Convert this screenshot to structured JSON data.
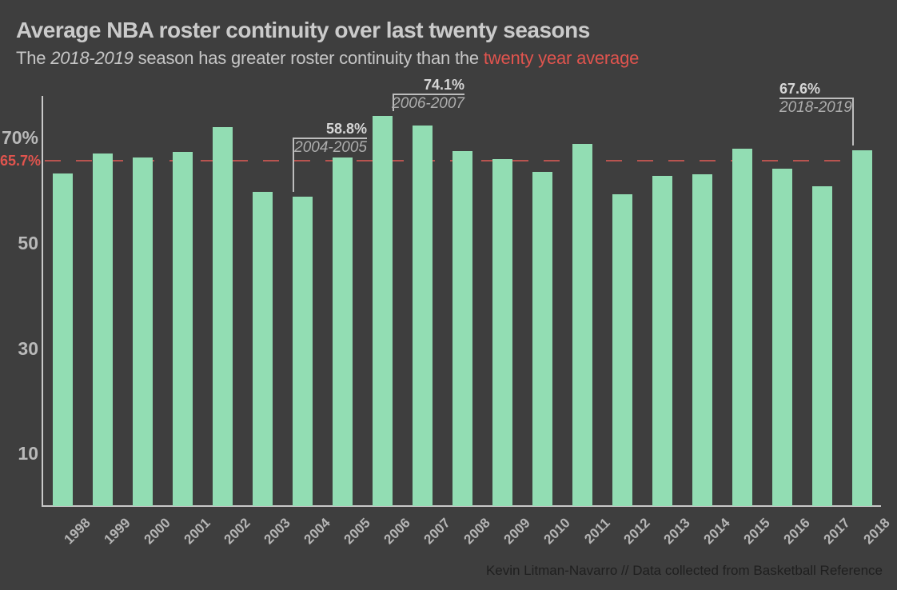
{
  "header": {
    "title": "Average NBA roster continuity over last twenty seasons",
    "subtitle": {
      "prefix": "The ",
      "season": "2018-2019",
      "middle": " season has greater roster continuity than the ",
      "highlight": "twenty year average"
    }
  },
  "chart_data": {
    "type": "bar",
    "title": "Average NBA roster continuity over last twenty seasons",
    "xlabel": "",
    "ylabel": "",
    "unit": "%",
    "categories": [
      "1998",
      "1999",
      "2000",
      "2001",
      "2002",
      "2003",
      "2004",
      "2005",
      "2006",
      "2007",
      "2008",
      "2009",
      "2010",
      "2011",
      "2012",
      "2013",
      "2014",
      "2015",
      "2016",
      "2017",
      "2018"
    ],
    "values": [
      63.2,
      67.0,
      66.2,
      67.4,
      72.0,
      59.7,
      58.8,
      66.2,
      74.1,
      72.4,
      67.5,
      66.0,
      63.5,
      68.9,
      59.2,
      62.8,
      63.0,
      67.9,
      64.1,
      60.8,
      67.6
    ],
    "ylim": [
      0,
      78
    ],
    "grid": false,
    "legend": "none",
    "yticks": [
      {
        "value": 70,
        "label": "70%"
      },
      {
        "value": 50,
        "label": "50"
      },
      {
        "value": 30,
        "label": "30"
      },
      {
        "value": 10,
        "label": "10"
      }
    ],
    "average_line": {
      "value": 65.7,
      "label": "65.7%",
      "style": "dashed"
    },
    "annotations": [
      {
        "category": "2004",
        "value_label": "58.8%",
        "season_label": "2004-2005"
      },
      {
        "category": "2006",
        "value_label": "74.1%",
        "season_label": "2006-2007"
      },
      {
        "category": "2018",
        "value_label": "67.6%",
        "season_label": "2018-2019"
      }
    ],
    "colors": {
      "background": "#3e3e3e",
      "bar": "#92ddb3",
      "average_line": "#b85450",
      "accent_red": "#e0544e",
      "axis": "#c9c9c9",
      "text_primary": "#cbcbcb",
      "text_secondary": "#b5b5b5",
      "footer_text": "#1f1f1f"
    }
  },
  "footer": {
    "credit": "Kevin Litman-Navarro // Data collected from Basketball Reference"
  }
}
